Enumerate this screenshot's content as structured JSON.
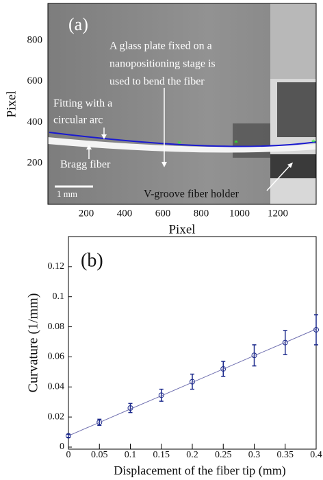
{
  "chart_data": [
    {
      "type": "image",
      "title": "(a)",
      "annotations": [
        "A glass plate fixed on a",
        "nanopositioning stage is",
        "used to bend the fiber",
        "Fitting with a",
        "circular arc",
        "Bragg fiber",
        "1 mm",
        "V-groove fiber holder"
      ],
      "xlabel": "Pixel",
      "ylabel": "Pixel",
      "xlim": [
        0,
        1400
      ],
      "ylim": [
        0,
        980
      ],
      "xticks": [
        200,
        400,
        600,
        800,
        1000,
        1200
      ],
      "yticks": [
        200,
        400,
        600,
        800
      ]
    },
    {
      "type": "scatter",
      "title": "(b)",
      "xlabel": "Displacement of the fiber tip (mm)",
      "ylabel": "Curvature (1/mm)",
      "x": [
        0,
        0.05,
        0.1,
        0.15,
        0.2,
        0.25,
        0.3,
        0.35,
        0.4
      ],
      "series": [
        {
          "color": "#1c2a8c",
          "values": [
            0.0075,
            0.0165,
            0.026,
            0.0345,
            0.0435,
            0.052,
            0.061,
            0.0695,
            0.078
          ],
          "errors": [
            0.001,
            0.002,
            0.003,
            0.004,
            0.005,
            0.005,
            0.007,
            0.008,
            0.01
          ]
        },
        {
          "color": "#7070b0",
          "values": [
            0.0075,
            0.0164,
            0.0253,
            0.0341,
            0.043,
            0.0519,
            0.0608,
            0.0696,
            0.0785
          ]
        }
      ],
      "xlim": [
        0,
        0.4
      ],
      "ylim": [
        0,
        0.14
      ],
      "xticks": [
        0,
        0.05,
        0.1,
        0.15,
        0.2,
        0.25,
        0.3,
        0.35,
        0.4
      ],
      "yticks": [
        0,
        0.02,
        0.04,
        0.06,
        0.08,
        0.1,
        0.12
      ]
    }
  ]
}
